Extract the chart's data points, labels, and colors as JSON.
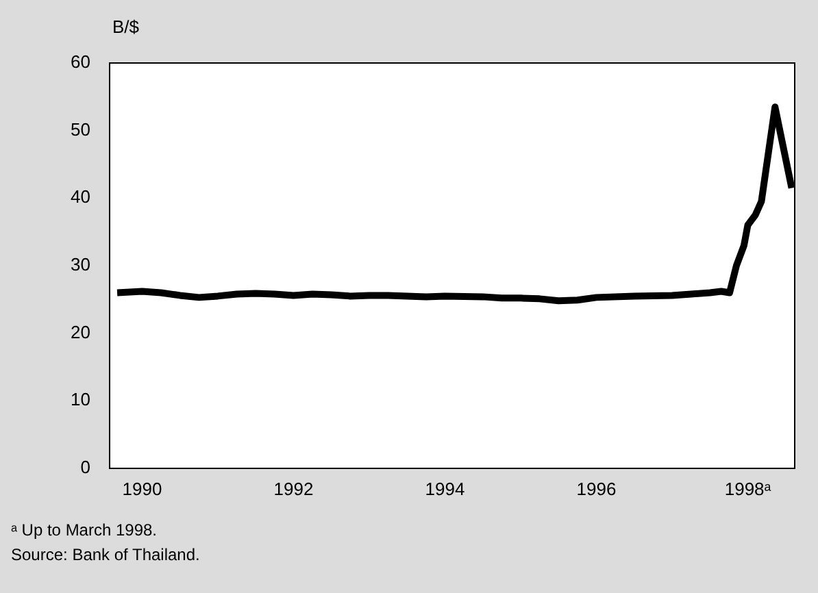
{
  "chart_data": {
    "type": "line",
    "ylabel": "B/$",
    "x": [
      1989.67,
      1990.0,
      1990.25,
      1990.5,
      1990.75,
      1991.0,
      1991.25,
      1991.5,
      1991.75,
      1992.0,
      1992.25,
      1992.5,
      1992.75,
      1993.0,
      1993.25,
      1993.5,
      1993.75,
      1994.0,
      1994.5,
      1994.75,
      1995.0,
      1995.25,
      1995.5,
      1995.75,
      1996.0,
      1996.5,
      1997.0,
      1997.25,
      1997.5,
      1997.65,
      1997.76,
      1997.85,
      1997.95,
      1998.0,
      1998.1,
      1998.18,
      1998.36,
      1998.58
    ],
    "series": [
      {
        "color": "#000000",
        "values": [
          26.0,
          26.2,
          26.0,
          25.6,
          25.3,
          25.5,
          25.8,
          25.9,
          25.8,
          25.6,
          25.8,
          25.7,
          25.5,
          25.6,
          25.6,
          25.5,
          25.4,
          25.5,
          25.4,
          25.2,
          25.2,
          25.1,
          24.8,
          24.9,
          25.3,
          25.5,
          25.6,
          25.8,
          26.0,
          26.2,
          26.0,
          30.0,
          33.0,
          36.0,
          37.5,
          39.5,
          53.5,
          41.5
        ]
      }
    ],
    "xlim": [
      1989.57,
      1998.62
    ],
    "xticks": [
      1990,
      1992,
      1994,
      1996,
      {
        "value": 1998,
        "label": "1998ᵃ"
      }
    ],
    "ylim": [
      0,
      60
    ],
    "yticks": [
      0,
      10,
      20,
      30,
      40,
      50,
      60
    ],
    "grid": false,
    "legend": false,
    "marker": "none",
    "line_style": "solid",
    "annotations": [
      "ᵃ Up to March 1998.",
      "Source: Bank of Thailand."
    ]
  }
}
